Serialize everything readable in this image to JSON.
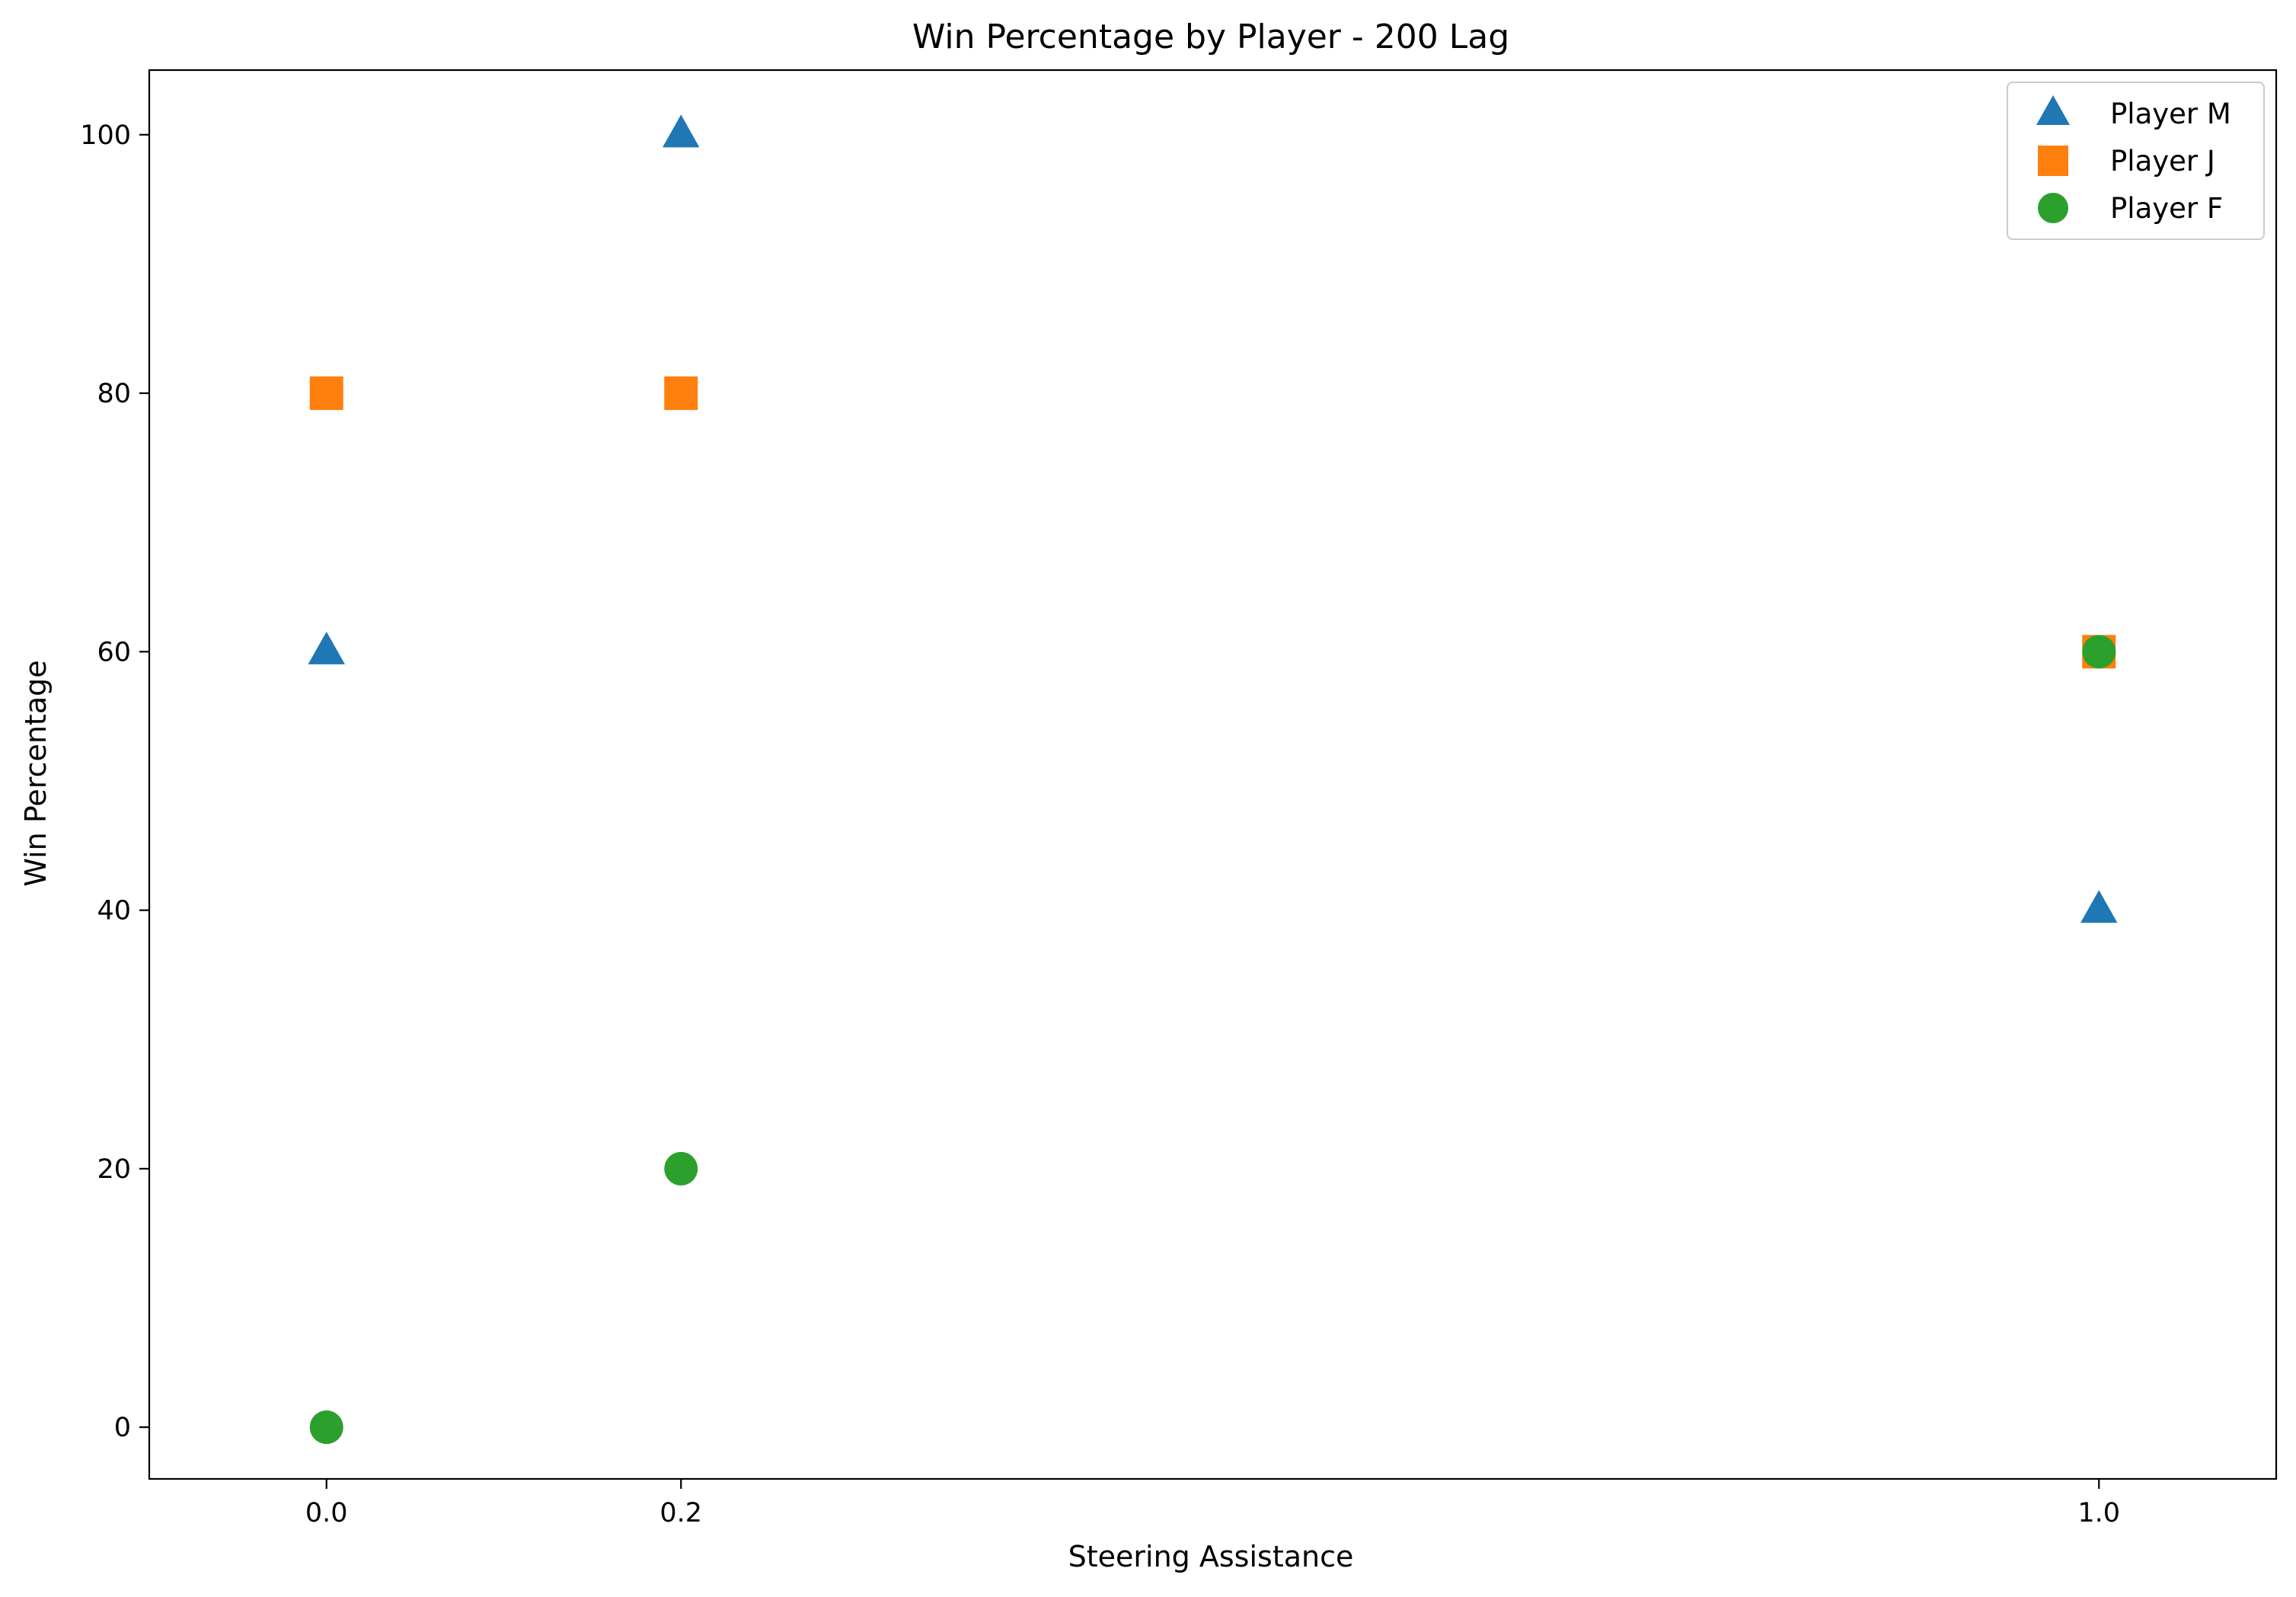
{
  "chart_data": {
    "type": "scatter",
    "title": "Win Percentage by Player - 200 Lag",
    "xlabel": "Steering Assistance",
    "ylabel": "Win Percentage",
    "xlim": [
      -0.1,
      1.1
    ],
    "ylim": [
      -4,
      105
    ],
    "xticks": [
      0.0,
      0.2,
      1.0
    ],
    "xtick_labels": [
      "0.0",
      "0.2",
      "1.0"
    ],
    "yticks": [
      0,
      20,
      40,
      60,
      80,
      100
    ],
    "ytick_labels": [
      "0",
      "20",
      "40",
      "60",
      "80",
      "100"
    ],
    "grid": false,
    "legend_position": "top-right",
    "series": [
      {
        "name": "Player M",
        "marker": "triangle",
        "color": "#1f77b4",
        "x": [
          0.0,
          0.2,
          1.0
        ],
        "y": [
          60,
          100,
          40
        ]
      },
      {
        "name": "Player J",
        "marker": "square",
        "color": "#ff7f0e",
        "x": [
          0.0,
          0.2,
          1.0
        ],
        "y": [
          80,
          80,
          60
        ]
      },
      {
        "name": "Player F",
        "marker": "circle",
        "color": "#2ca02c",
        "x": [
          0.0,
          0.2,
          1.0
        ],
        "y": [
          0,
          20,
          60
        ]
      }
    ]
  }
}
